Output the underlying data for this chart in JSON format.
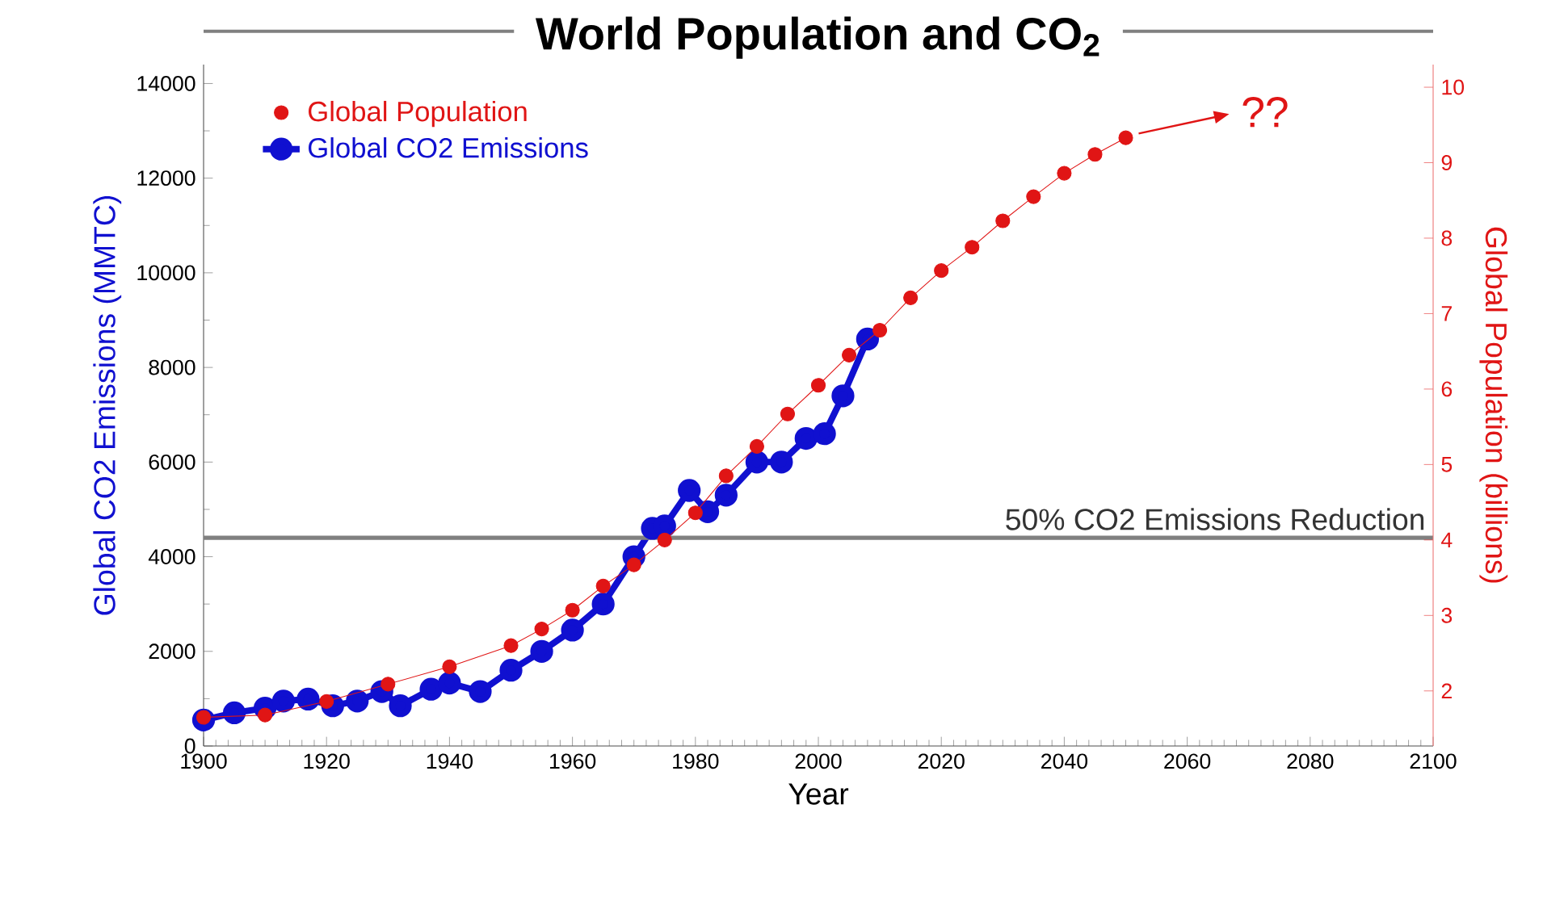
{
  "chart_data": {
    "type": "line",
    "title": "World Population and CO$_{2}$",
    "xlabel": "Year",
    "ylabel": "Global CO2 Emissions (MMTC)",
    "y2label": "Global Population (billions)",
    "xlim": [
      1900,
      2100
    ],
    "xticks": [
      1900,
      1920,
      1940,
      1960,
      1980,
      2000,
      2020,
      2040,
      2060,
      2080,
      2100
    ],
    "ylim": [
      0,
      14400
    ],
    "yticks": [
      0,
      2000,
      4000,
      6000,
      8000,
      10000,
      12000,
      14000
    ],
    "y2lim": [
      1.27,
      10.3
    ],
    "y2ticks": [
      2,
      3,
      4,
      5,
      6,
      7,
      8,
      9,
      10
    ],
    "marker": "circle",
    "legend": "top left",
    "ref_lines": [
      {
        "axis": "y",
        "value": 4400,
        "label": "50% CO2 Emissions Reduction",
        "color": "#808080"
      }
    ],
    "annotations": [
      "??"
    ],
    "series": [
      {
        "name": "Global Population",
        "color": "#e01515",
        "axis": "y2",
        "x": [
          1900,
          1910,
          1920,
          1930,
          1940,
          1950,
          1955,
          1960,
          1965,
          1970,
          1975,
          1980,
          1985,
          1990,
          1995,
          2000,
          2005,
          2010,
          2015,
          2020,
          2025,
          2030,
          2035,
          2040,
          2045,
          2050
        ],
        "values": [
          1.65,
          1.68,
          1.86,
          2.09,
          2.32,
          2.6,
          2.82,
          3.07,
          3.39,
          3.67,
          4.0,
          4.36,
          4.85,
          5.24,
          5.67,
          6.05,
          6.45,
          6.78,
          7.21,
          7.57,
          7.88,
          8.23,
          8.55,
          8.86,
          9.11,
          9.33
        ]
      },
      {
        "name": "Global CO2 Emissions",
        "color": "#1010d0",
        "x": [
          1900,
          1905,
          1910,
          1913,
          1917,
          1921,
          1925,
          1929,
          1932,
          1937,
          1940,
          1945,
          1950,
          1955,
          1960,
          1965,
          1970,
          1973,
          1975,
          1979,
          1982,
          1985,
          1990,
          1994,
          1998,
          2001,
          2004,
          2008
        ],
        "values": [
          550,
          700,
          800,
          950,
          990,
          850,
          950,
          1150,
          850,
          1200,
          1330,
          1150,
          1600,
          2000,
          2450,
          3000,
          4000,
          4600,
          4650,
          5400,
          4950,
          5300,
          6000,
          6000,
          6500,
          6600,
          7400,
          8600
        ]
      }
    ]
  }
}
